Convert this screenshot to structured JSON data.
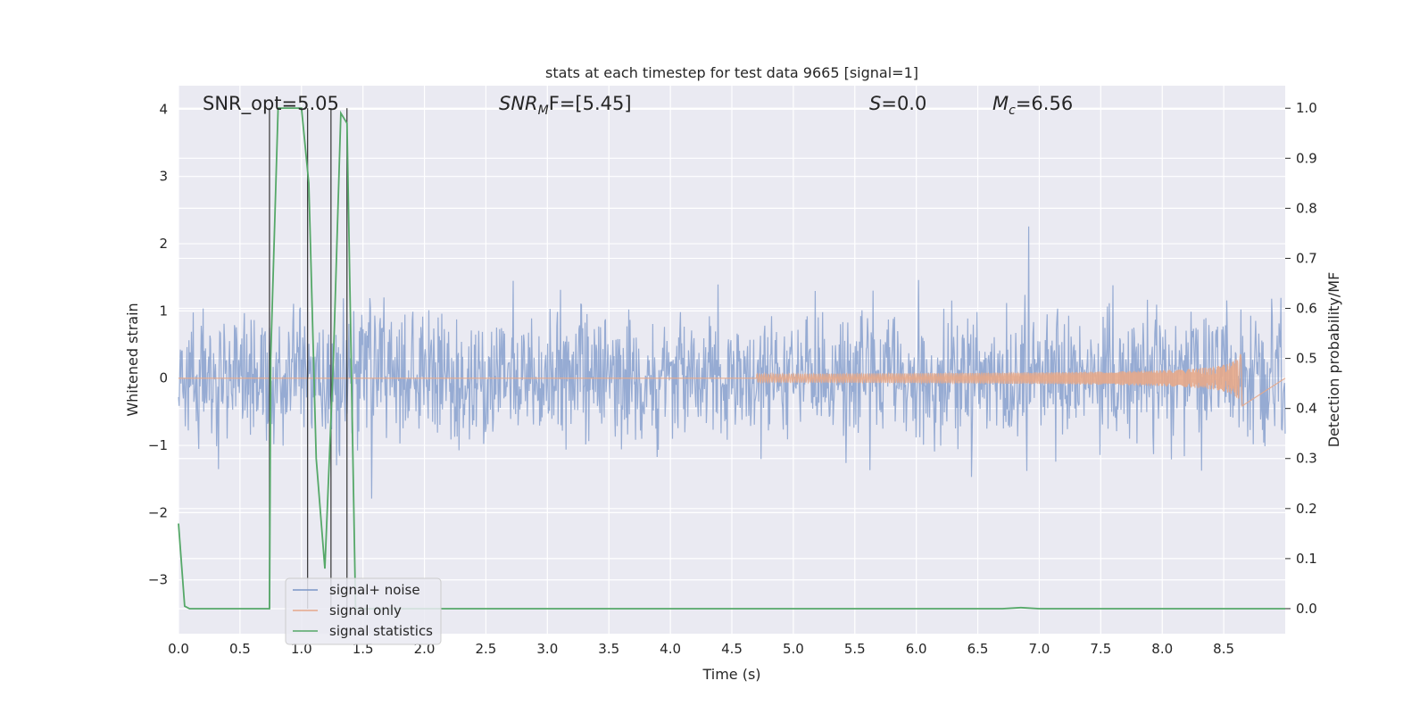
{
  "chart_data": {
    "type": "line",
    "title": "stats at each timestep for test data 9665 [signal=1]",
    "xlabel": "Time (s)",
    "ylabel": "Whitened strain",
    "ylabel_right": "Detection probability/MF",
    "xlim": [
      0.0,
      9.0
    ],
    "ylim": [
      -3.8,
      4.35
    ],
    "ylim_right": [
      -0.05,
      1.045
    ],
    "x_ticks": [
      "0.0",
      "0.5",
      "1.0",
      "1.5",
      "2.0",
      "2.5",
      "3.0",
      "3.5",
      "4.0",
      "4.5",
      "5.0",
      "5.5",
      "6.0",
      "6.5",
      "7.0",
      "7.5",
      "8.0",
      "8.5"
    ],
    "y_ticks": [
      "4",
      "3",
      "2",
      "1",
      "0",
      "−1",
      "−2",
      "−3"
    ],
    "y_ticks_right": [
      "1.0",
      "0.9",
      "0.8",
      "0.7",
      "0.6",
      "0.5",
      "0.4",
      "0.3",
      "0.2",
      "0.1",
      "0.0"
    ],
    "grid": true,
    "legend_position": "bottom-left",
    "annotations": {
      "snr_opt": "SNR_opt=5.05",
      "snr_mf_main": "SNR",
      "snr_mf_sub": "M",
      "snr_mf_rest": "F=[5.45]",
      "s_var": "S",
      "s_val": "=0.0",
      "mc_var": "M",
      "mc_sub": "c",
      "mc_val": "=6.56"
    },
    "series": [
      {
        "name": "signal+ noise",
        "color": "#7a96c8",
        "axis": "left",
        "description_envelope": {
          "typical_abs_max": 2.5,
          "peak_max": 4.0,
          "peak_min": -3.45,
          "duration": 9.0
        }
      },
      {
        "name": "signal only",
        "color": "#e6a88a",
        "axis": "left",
        "chirp": {
          "start_visible": 4.7,
          "end": 8.65,
          "max_amplitude": 0.5
        }
      },
      {
        "name": "signal statistics",
        "color": "#55a868",
        "axis": "right",
        "x": [
          0.0,
          0.05,
          0.09,
          0.15,
          0.74,
          0.75,
          0.81,
          0.85,
          1.0,
          1.06,
          1.12,
          1.19,
          1.26,
          1.32,
          1.37,
          1.44,
          1.5,
          6.7,
          6.85,
          7.0,
          9.0
        ],
        "y": [
          0.17,
          0.005,
          0.0,
          0.0,
          0.0,
          0.5,
          1.0,
          1.0,
          1.0,
          0.85,
          0.3,
          0.08,
          0.5,
          0.99,
          0.97,
          0.0,
          0.0,
          0.0,
          0.002,
          0.0,
          0.0
        ]
      }
    ],
    "vertical_markers": [
      0.74,
      1.05,
      1.24,
      1.37
    ]
  }
}
